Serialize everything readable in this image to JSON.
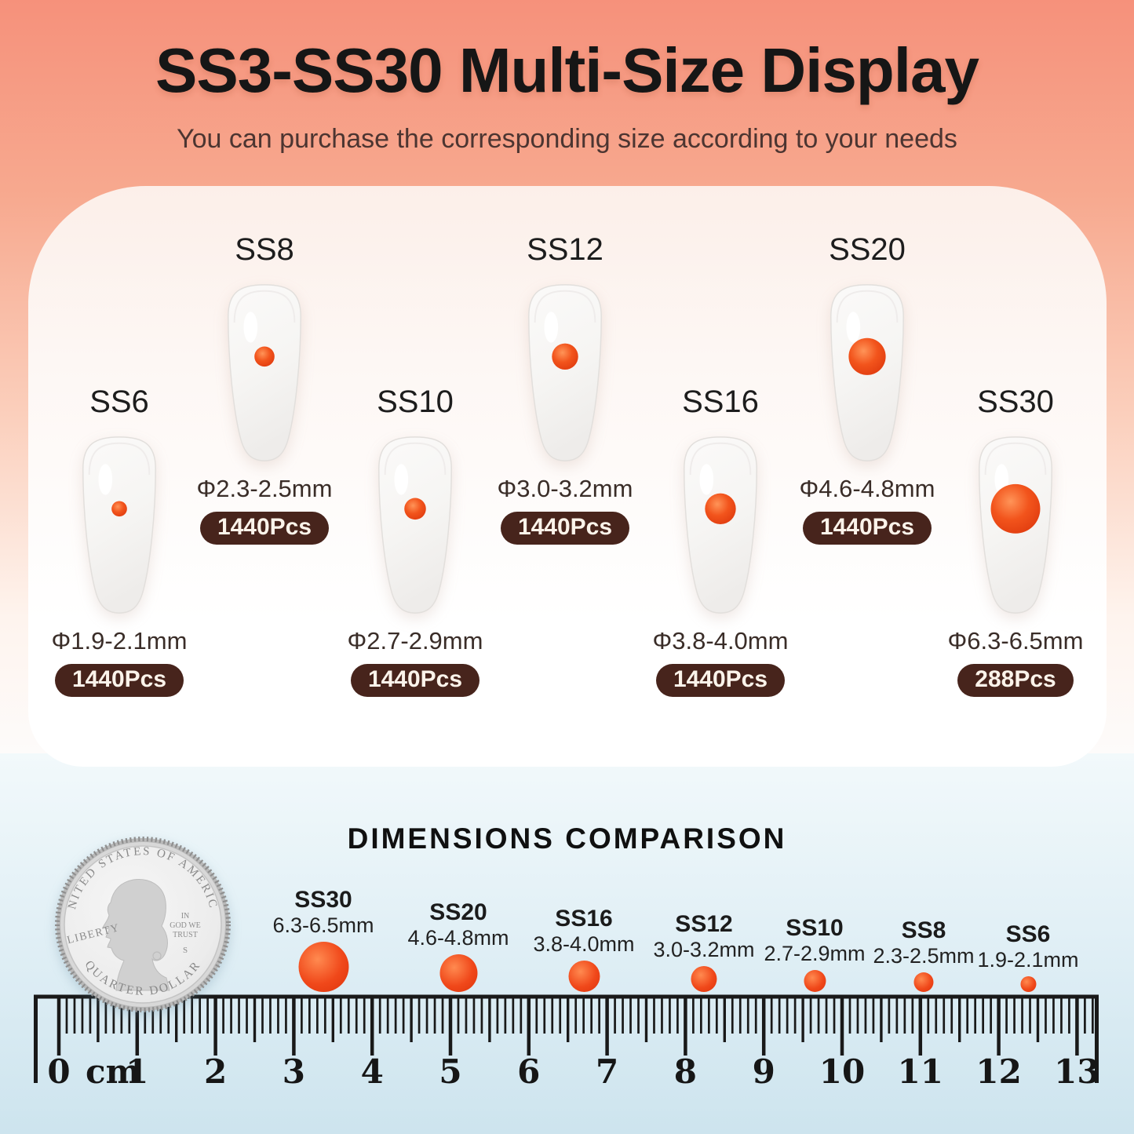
{
  "header": {
    "title": "SS3-SS30 Multi-Size Display",
    "subtitle": "You can purchase the corresponding size according to your needs"
  },
  "sizes": [
    {
      "label": "SS6",
      "diameter": "Φ1.9-2.1mm",
      "pcs": "1440Pcs",
      "gem_r": 10
    },
    {
      "label": "SS8",
      "diameter": "Φ2.3-2.5mm",
      "pcs": "1440Pcs",
      "gem_r": 13
    },
    {
      "label": "SS10",
      "diameter": "Φ2.7-2.9mm",
      "pcs": "1440Pcs",
      "gem_r": 14
    },
    {
      "label": "SS12",
      "diameter": "Φ3.0-3.2mm",
      "pcs": "1440Pcs",
      "gem_r": 17
    },
    {
      "label": "SS16",
      "diameter": "Φ3.8-4.0mm",
      "pcs": "1440Pcs",
      "gem_r": 20
    },
    {
      "label": "SS20",
      "diameter": "Φ4.6-4.8mm",
      "pcs": "1440Pcs",
      "gem_r": 24
    },
    {
      "label": "SS30",
      "diameter": "Φ6.3-6.5mm",
      "pcs": "288Pcs",
      "gem_r": 32
    }
  ],
  "comparison": {
    "heading": "DIMENSIONS COMPARISON",
    "items": [
      {
        "label": "SS30",
        "size": "6.3-6.5mm"
      },
      {
        "label": "SS20",
        "size": "4.6-4.8mm"
      },
      {
        "label": "SS16",
        "size": "3.8-4.0mm"
      },
      {
        "label": "SS12",
        "size": "3.0-3.2mm"
      },
      {
        "label": "SS10",
        "size": "2.7-2.9mm"
      },
      {
        "label": "SS8",
        "size": "2.3-2.5mm"
      },
      {
        "label": "SS6",
        "size": "1.9-2.1mm"
      }
    ],
    "coin": {
      "top_text": "UNITED STATES OF AMERICA",
      "left_text": "LIBERTY",
      "motto_line1": "IN",
      "motto_line2": "GOD WE",
      "motto_line3": "TRUST",
      "mint_mark": "S",
      "bottom_text": "QUARTER DOLLAR"
    }
  },
  "ruler": {
    "unit_label": "cm",
    "numbers": [
      "0",
      "1",
      "2",
      "3",
      "4",
      "5",
      "6",
      "7",
      "8",
      "9",
      "10",
      "11",
      "12",
      "13"
    ]
  },
  "colors": {
    "gem_orange": "#f0481a",
    "badge_brown": "#47241c",
    "top_background": "#f6917b",
    "bottom_background": "#cde4ee"
  }
}
